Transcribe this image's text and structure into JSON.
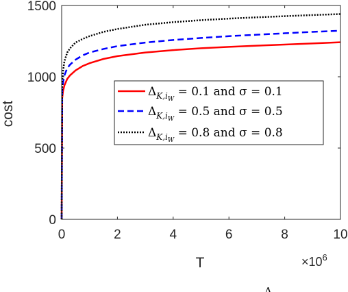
{
  "chart_data": {
    "type": "line",
    "title": "",
    "xlabel": "T",
    "ylabel": "cost",
    "x_multiplier": "×10",
    "x_multiplier_exp": "6",
    "xlim": [
      0,
      10
    ],
    "ylim": [
      0,
      1500
    ],
    "xticks": [
      "0",
      "2",
      "4",
      "6",
      "8",
      "10"
    ],
    "yticks": [
      "0",
      "500",
      "1000",
      "1500"
    ],
    "grid": false,
    "legend_position": "center-right",
    "series": [
      {
        "name": "ΔK,iW = 0.1 and σ = 0.1",
        "color": "#ff0000",
        "dash": "solid",
        "x": [
          0,
          0.02,
          0.05,
          0.1,
          0.2,
          0.3,
          0.5,
          0.75,
          1,
          1.5,
          2,
          3,
          4,
          5,
          6,
          7,
          8,
          9,
          10
        ],
        "y": [
          0,
          850,
          900,
          940,
          985,
          1010,
          1045,
          1075,
          1095,
          1125,
          1145,
          1170,
          1187,
          1200,
          1210,
          1218,
          1226,
          1234,
          1242
        ]
      },
      {
        "name": "ΔK,iW = 0.5 and σ = 0.5",
        "color": "#0000ff",
        "dash": "dashed",
        "x": [
          0,
          0.02,
          0.05,
          0.1,
          0.2,
          0.3,
          0.5,
          0.75,
          1,
          1.5,
          2,
          3,
          4,
          5,
          6,
          7,
          8,
          9,
          10
        ],
        "y": [
          0,
          900,
          960,
          1010,
          1060,
          1085,
          1120,
          1150,
          1170,
          1195,
          1215,
          1240,
          1258,
          1272,
          1285,
          1295,
          1305,
          1315,
          1323
        ]
      },
      {
        "name": "ΔK,iW = 0.8 and σ = 0.8",
        "color": "#000000",
        "dash": "dotted",
        "x": [
          0,
          0.02,
          0.05,
          0.1,
          0.2,
          0.3,
          0.5,
          0.75,
          1,
          1.5,
          2,
          3,
          4,
          5,
          6,
          7,
          8,
          9,
          10
        ],
        "y": [
          0,
          960,
          1040,
          1110,
          1170,
          1200,
          1240,
          1265,
          1285,
          1315,
          1335,
          1365,
          1383,
          1397,
          1408,
          1417,
          1425,
          1433,
          1440
        ]
      }
    ],
    "legend_text": [
      {
        "lhs": "Δ",
        "sub": "K,i",
        "subsub": "W",
        "rhs": " = 0.1 and σ = 0.1"
      },
      {
        "lhs": "Δ",
        "sub": "K,i",
        "subsub": "W",
        "rhs": " = 0.5 and σ = 0.5"
      },
      {
        "lhs": "Δ",
        "sub": "K,i",
        "subsub": "W",
        "rhs": " = 0.8 and σ = 0.8"
      }
    ],
    "bottom_fragment": "Δ"
  }
}
